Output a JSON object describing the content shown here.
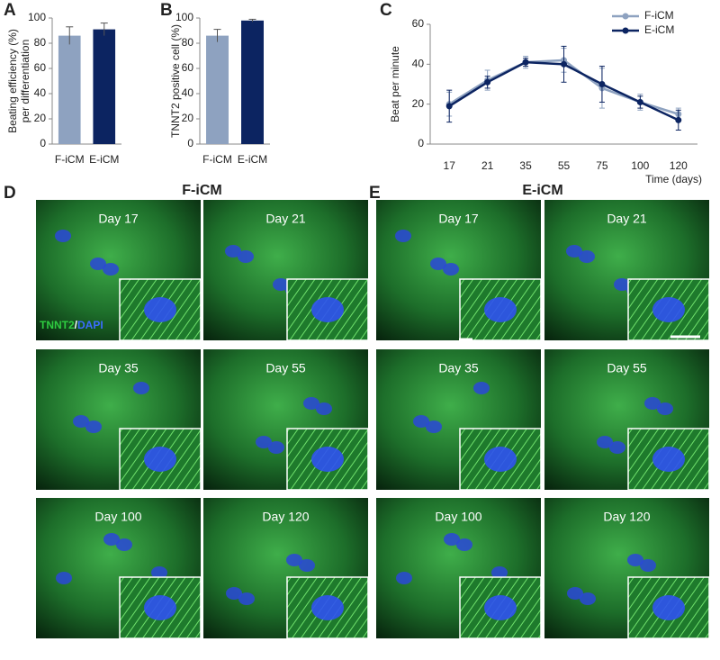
{
  "panel_labels": [
    "A",
    "B",
    "C",
    "D",
    "E"
  ],
  "chart_data": [
    {
      "type": "bar",
      "categories": [
        "F-iCM",
        "E-iCM"
      ],
      "values": [
        86,
        91
      ],
      "errors": [
        7,
        5
      ],
      "colors": [
        "#8ea2c0",
        "#0c2461"
      ],
      "y_label": [
        "Beating efficiency (%)",
        "per differentiation"
      ],
      "ylim": [
        0,
        100
      ],
      "yticks": [
        0,
        20,
        40,
        60,
        80,
        100
      ]
    },
    {
      "type": "bar",
      "categories": [
        "F-iCM",
        "E-iCM"
      ],
      "values": [
        86,
        98
      ],
      "errors": [
        5,
        1
      ],
      "colors": [
        "#8ea2c0",
        "#0c2461"
      ],
      "y_label": [
        "TNNT2 positive cell (%)"
      ],
      "ylim": [
        0,
        100
      ],
      "yticks": [
        0,
        20,
        40,
        60,
        80,
        100
      ]
    },
    {
      "type": "line",
      "categories": [
        "17",
        "21",
        "35",
        "55",
        "75",
        "100",
        "120"
      ],
      "series": [
        {
          "name": "F-iCM",
          "color": "#8ea2c0",
          "values": [
            20,
            32,
            41,
            42,
            28,
            21,
            15
          ],
          "errors": [
            6,
            5,
            3,
            6,
            10,
            4,
            3
          ]
        },
        {
          "name": "E-iCM",
          "color": "#0c2461",
          "values": [
            19,
            31,
            41,
            40,
            30,
            21,
            12
          ],
          "errors": [
            8,
            3,
            2,
            9,
            9,
            3,
            5
          ]
        }
      ],
      "y_label": [
        "Beat per minute"
      ],
      "x_label": "Time (days)",
      "legend": "top-right",
      "ylim": [
        0,
        60
      ],
      "yticks": [
        0,
        20,
        40,
        60
      ]
    }
  ],
  "image_panels": [
    {
      "title": "F-iCM",
      "days": [
        "Day 17",
        "Day 21",
        "Day 35",
        "Day 55",
        "Day 100",
        "Day 120"
      ]
    },
    {
      "title": "E-iCM",
      "days": [
        "Day 17",
        "Day 21",
        "Day 35",
        "Day 55",
        "Day 100",
        "Day 120"
      ]
    }
  ],
  "stain_label": [
    "TNNT2",
    "/",
    "DAPI"
  ]
}
